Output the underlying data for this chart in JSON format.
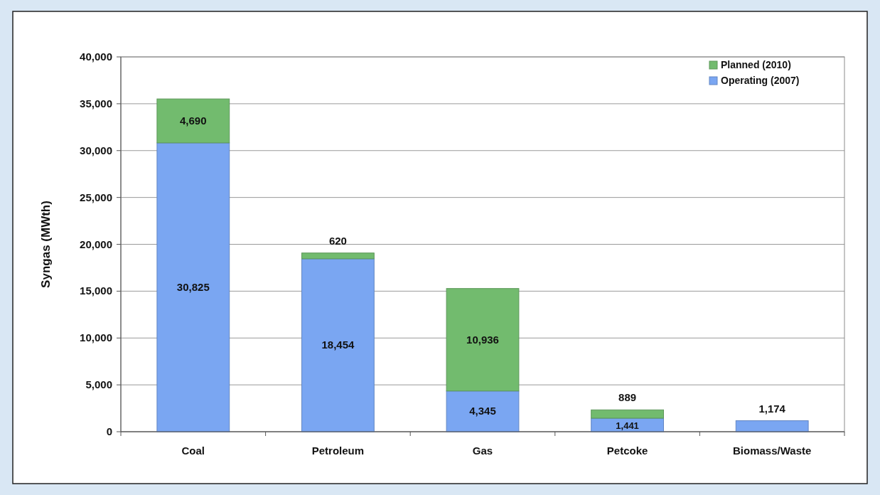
{
  "chart_data": {
    "type": "bar",
    "stacked": true,
    "ylabel": "Syngas (MWth)",
    "categories": [
      "Coal",
      "Petroleum",
      "Gas",
      "Petcoke",
      "Biomass/Waste"
    ],
    "series": [
      {
        "name": "Operating (2007)",
        "color": "#7aa6f2",
        "values": [
          30825,
          18454,
          4345,
          1441,
          1174
        ],
        "value_labels": [
          "30,825",
          "18,454",
          "4,345",
          "1,441",
          "1,174"
        ]
      },
      {
        "name": "Planned (2010)",
        "color": "#72bb6e",
        "values": [
          4690,
          620,
          10936,
          889,
          null
        ],
        "value_labels": [
          "4,690",
          "620",
          "10,936",
          "889",
          null
        ]
      }
    ],
    "ylim": [
      0,
      40000
    ],
    "yticks": [
      {
        "value": 0,
        "label": "0"
      },
      {
        "value": 5000,
        "label": "5,000"
      },
      {
        "value": 10000,
        "label": "10,000"
      },
      {
        "value": 15000,
        "label": "15,000"
      },
      {
        "value": 20000,
        "label": "20,000"
      },
      {
        "value": 25000,
        "label": "25,000"
      },
      {
        "value": 30000,
        "label": "30,000"
      },
      {
        "value": 35000,
        "label": "35,000"
      },
      {
        "value": 40000,
        "label": "40,000"
      }
    ],
    "grid": "y",
    "legend": "top right"
  }
}
